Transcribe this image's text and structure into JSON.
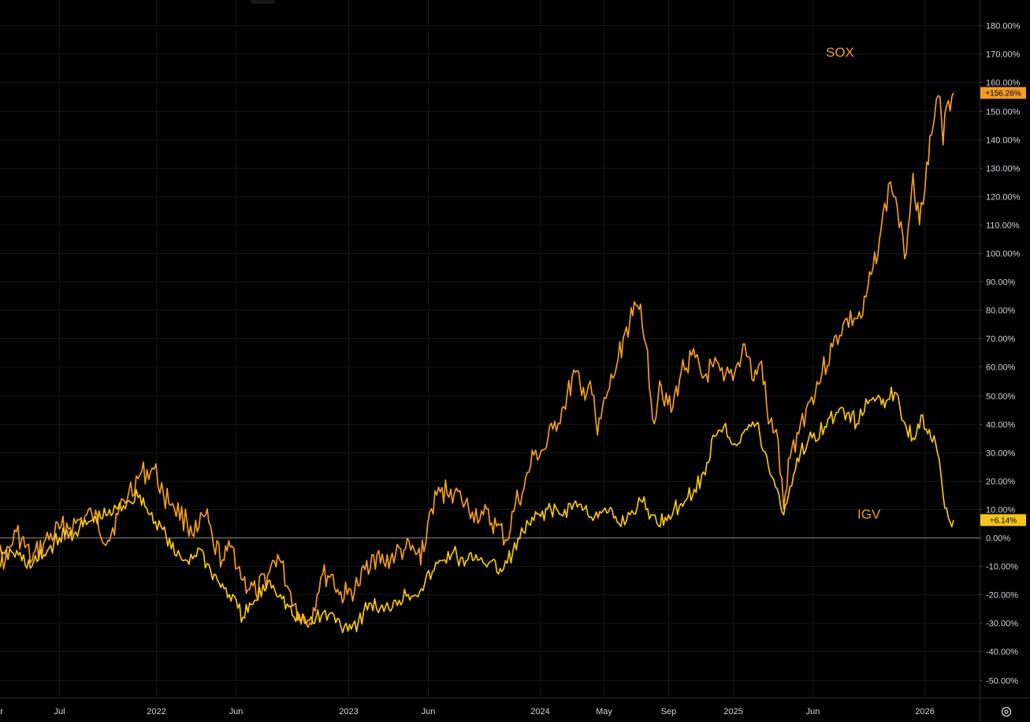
{
  "chart_data": {
    "type": "line",
    "title": "",
    "xlabel": "",
    "ylabel": "",
    "y_unit": "%",
    "ylim": [
      -55,
      185
    ],
    "grid": true,
    "legend": "inline labels",
    "x_ticks": [
      "Mar",
      "Jul",
      "2022",
      "Jun",
      "2023",
      "Jun",
      "2024",
      "May",
      "Sep",
      "2025",
      "Jun",
      "2026"
    ],
    "y_ticks": [
      180,
      170,
      160,
      150,
      140,
      130,
      120,
      110,
      100,
      90,
      80,
      70,
      60,
      50,
      40,
      30,
      20,
      10,
      0,
      -10,
      -20,
      -30,
      -40,
      -50
    ],
    "y_tick_labels": [
      "180.00%",
      "170.00%",
      "160.00%",
      "150.00%",
      "140.00%",
      "130.00%",
      "120.00%",
      "110.00%",
      "100.00%",
      "90.00%",
      "80.00%",
      "70.00%",
      "60.00%",
      "50.00%",
      "40.00%",
      "30.00%",
      "20.00%",
      "10.00%",
      "0.00%",
      "-10.00%",
      "-20.00%",
      "-30.00%",
      "-40.00%",
      "-50.00%"
    ],
    "series": [
      {
        "name": "SOX",
        "color": "#f29c24",
        "last_value_label": "+156.26%",
        "points": [
          [
            "2021-03-01",
            -5
          ],
          [
            "2021-03-20",
            -8
          ],
          [
            "2021-04-10",
            2
          ],
          [
            "2021-05-10",
            -8
          ],
          [
            "2021-06-01",
            -2
          ],
          [
            "2021-07-01",
            3
          ],
          [
            "2021-08-01",
            5
          ],
          [
            "2021-09-01",
            8
          ],
          [
            "2021-10-01",
            -1
          ],
          [
            "2021-10-20",
            8
          ],
          [
            "2021-11-10",
            16
          ],
          [
            "2021-12-01",
            22
          ],
          [
            "2021-12-28",
            24
          ],
          [
            "2022-01-15",
            15
          ],
          [
            "2022-02-01",
            12
          ],
          [
            "2022-03-01",
            5
          ],
          [
            "2022-03-20",
            2
          ],
          [
            "2022-04-05",
            8
          ],
          [
            "2022-04-20",
            -3
          ],
          [
            "2022-05-10",
            -8
          ],
          [
            "2022-05-25",
            -3
          ],
          [
            "2022-06-15",
            -15
          ],
          [
            "2022-07-10",
            -20
          ],
          [
            "2022-08-01",
            -13
          ],
          [
            "2022-08-20",
            -6
          ],
          [
            "2022-09-10",
            -18
          ],
          [
            "2022-09-30",
            -27
          ],
          [
            "2022-10-20",
            -30
          ],
          [
            "2022-11-10",
            -14
          ],
          [
            "2022-11-30",
            -13
          ],
          [
            "2022-12-15",
            -20
          ],
          [
            "2022-12-30",
            -20
          ],
          [
            "2023-01-20",
            -17
          ],
          [
            "2023-02-15",
            -6
          ],
          [
            "2023-03-10",
            -9
          ],
          [
            "2023-04-01",
            -6
          ],
          [
            "2023-04-20",
            -4
          ],
          [
            "2023-05-10",
            -6
          ],
          [
            "2023-05-25",
            -5
          ],
          [
            "2023-06-05",
            9
          ],
          [
            "2023-06-25",
            16
          ],
          [
            "2023-07-15",
            17
          ],
          [
            "2023-08-05",
            13
          ],
          [
            "2023-08-25",
            9
          ],
          [
            "2023-09-15",
            8
          ],
          [
            "2023-10-10",
            4
          ],
          [
            "2023-10-30",
            -1
          ],
          [
            "2023-11-15",
            12
          ],
          [
            "2023-12-01",
            17
          ],
          [
            "2023-12-20",
            29
          ],
          [
            "2024-01-10",
            31
          ],
          [
            "2024-01-25",
            38
          ],
          [
            "2024-02-15",
            46
          ],
          [
            "2024-03-08",
            58
          ],
          [
            "2024-03-20",
            50
          ],
          [
            "2024-04-05",
            55
          ],
          [
            "2024-04-19",
            36
          ],
          [
            "2024-05-05",
            49
          ],
          [
            "2024-05-25",
            60
          ],
          [
            "2024-06-10",
            72
          ],
          [
            "2024-06-25",
            78
          ],
          [
            "2024-07-10",
            82
          ],
          [
            "2024-07-20",
            68
          ],
          [
            "2024-08-05",
            40
          ],
          [
            "2024-08-15",
            55
          ],
          [
            "2024-09-06",
            44
          ],
          [
            "2024-09-25",
            58
          ],
          [
            "2024-10-15",
            64
          ],
          [
            "2024-11-05",
            56
          ],
          [
            "2024-11-25",
            60
          ],
          [
            "2024-12-15",
            55
          ],
          [
            "2025-01-05",
            58
          ],
          [
            "2025-01-24",
            68
          ],
          [
            "2025-02-10",
            55
          ],
          [
            "2025-02-25",
            62
          ],
          [
            "2025-03-10",
            40
          ],
          [
            "2025-03-25",
            38
          ],
          [
            "2025-04-08",
            10
          ],
          [
            "2025-04-20",
            28
          ],
          [
            "2025-05-10",
            40
          ],
          [
            "2025-05-28",
            48
          ],
          [
            "2025-06-20",
            58
          ],
          [
            "2025-07-10",
            67
          ],
          [
            "2025-07-30",
            75
          ],
          [
            "2025-08-20",
            77
          ],
          [
            "2025-09-05",
            78
          ],
          [
            "2025-09-25",
            95
          ],
          [
            "2025-10-10",
            108
          ],
          [
            "2025-10-28",
            125
          ],
          [
            "2025-11-10",
            116
          ],
          [
            "2025-11-24",
            98
          ],
          [
            "2025-12-10",
            128
          ],
          [
            "2025-12-22",
            110
          ],
          [
            "2026-01-05",
            132
          ],
          [
            "2026-01-20",
            148
          ],
          [
            "2026-01-30",
            155
          ],
          [
            "2026-02-05",
            138
          ],
          [
            "2026-02-12",
            152
          ],
          [
            "2026-02-25",
            156.26
          ]
        ]
      },
      {
        "name": "IGV",
        "color": "#f5c518",
        "last_value_label": "+6.14%",
        "points": [
          [
            "2021-03-01",
            -10
          ],
          [
            "2021-04-01",
            -5
          ],
          [
            "2021-05-10",
            -10
          ],
          [
            "2021-06-01",
            -6
          ],
          [
            "2021-07-01",
            0
          ],
          [
            "2021-08-01",
            2
          ],
          [
            "2021-09-01",
            6
          ],
          [
            "2021-10-01",
            8
          ],
          [
            "2021-10-20",
            10
          ],
          [
            "2021-11-10",
            13
          ],
          [
            "2021-12-01",
            15
          ],
          [
            "2021-12-20",
            8
          ],
          [
            "2022-01-10",
            4
          ],
          [
            "2022-02-05",
            -6
          ],
          [
            "2022-03-01",
            -8
          ],
          [
            "2022-03-25",
            -4
          ],
          [
            "2022-04-15",
            -12
          ],
          [
            "2022-05-10",
            -18
          ],
          [
            "2022-05-20",
            -20
          ],
          [
            "2022-06-15",
            -28
          ],
          [
            "2022-07-10",
            -22
          ],
          [
            "2022-08-05",
            -15
          ],
          [
            "2022-08-25",
            -20
          ],
          [
            "2022-09-20",
            -28
          ],
          [
            "2022-10-10",
            -30
          ],
          [
            "2022-11-01",
            -28
          ],
          [
            "2022-11-25",
            -27
          ],
          [
            "2022-12-25",
            -31
          ],
          [
            "2023-01-20",
            -30
          ],
          [
            "2023-02-10",
            -23
          ],
          [
            "2023-03-10",
            -26
          ],
          [
            "2023-04-01",
            -22
          ],
          [
            "2023-04-25",
            -20
          ],
          [
            "2023-05-20",
            -18
          ],
          [
            "2023-06-10",
            -12
          ],
          [
            "2023-06-30",
            -8
          ],
          [
            "2023-07-20",
            -5
          ],
          [
            "2023-08-10",
            -10
          ],
          [
            "2023-09-01",
            -6
          ],
          [
            "2023-09-25",
            -9
          ],
          [
            "2023-10-20",
            -12
          ],
          [
            "2023-11-10",
            -5
          ],
          [
            "2023-11-30",
            2
          ],
          [
            "2023-12-20",
            6
          ],
          [
            "2024-01-15",
            10
          ],
          [
            "2024-02-10",
            8
          ],
          [
            "2024-03-05",
            12
          ],
          [
            "2024-03-25",
            10
          ],
          [
            "2024-04-20",
            7
          ],
          [
            "2024-05-10",
            9
          ],
          [
            "2024-05-30",
            5
          ],
          [
            "2024-06-20",
            8
          ],
          [
            "2024-07-10",
            13
          ],
          [
            "2024-07-30",
            8
          ],
          [
            "2024-08-10",
            5
          ],
          [
            "2024-09-01",
            8
          ],
          [
            "2024-09-25",
            12
          ],
          [
            "2024-10-20",
            17
          ],
          [
            "2024-11-10",
            22
          ],
          [
            "2024-11-25",
            36
          ],
          [
            "2024-12-15",
            39
          ],
          [
            "2025-01-05",
            33
          ],
          [
            "2025-01-25",
            38
          ],
          [
            "2025-02-15",
            40
          ],
          [
            "2025-03-10",
            25
          ],
          [
            "2025-03-30",
            15
          ],
          [
            "2025-04-08",
            8
          ],
          [
            "2025-04-20",
            18
          ],
          [
            "2025-05-10",
            30
          ],
          [
            "2025-06-01",
            35
          ],
          [
            "2025-06-25",
            39
          ],
          [
            "2025-07-20",
            44
          ],
          [
            "2025-08-10",
            44
          ],
          [
            "2025-08-25",
            40
          ],
          [
            "2025-09-15",
            47
          ],
          [
            "2025-10-05",
            50
          ],
          [
            "2025-10-20",
            48
          ],
          [
            "2025-11-05",
            51
          ],
          [
            "2025-11-25",
            40
          ],
          [
            "2025-12-10",
            35
          ],
          [
            "2025-12-25",
            43
          ],
          [
            "2026-01-10",
            38
          ],
          [
            "2026-01-25",
            30
          ],
          [
            "2026-02-05",
            15
          ],
          [
            "2026-02-15",
            7
          ],
          [
            "2026-02-25",
            6.14
          ]
        ]
      }
    ]
  }
}
